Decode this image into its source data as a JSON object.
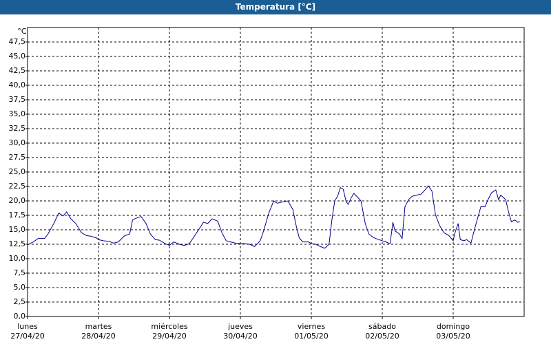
{
  "chart_data": {
    "type": "line",
    "title": "Temperatura [°C]",
    "y_label": "°C",
    "x": [
      0,
      0.08,
      0.15,
      0.24,
      0.29,
      0.37,
      0.44,
      0.5,
      0.55,
      0.61,
      0.68,
      0.76,
      0.83,
      0.89,
      0.97,
      1.0,
      1.07,
      1.15,
      1.21,
      1.28,
      1.36,
      1.44,
      1.48,
      1.53,
      1.6,
      1.67,
      1.73,
      1.8,
      1.86,
      1.94,
      2.0,
      2.06,
      2.14,
      2.21,
      2.28,
      2.33,
      2.4,
      2.48,
      2.54,
      2.6,
      2.68,
      2.74,
      2.8,
      2.86,
      2.93,
      3.0,
      3.06,
      3.13,
      3.2,
      3.28,
      3.33,
      3.4,
      3.47,
      3.52,
      3.59,
      3.67,
      3.74,
      3.79,
      3.83,
      3.88,
      3.96,
      4.0,
      4.06,
      4.13,
      4.19,
      4.25,
      4.29,
      4.33,
      4.37,
      4.41,
      4.45,
      4.49,
      4.52,
      4.56,
      4.6,
      4.64,
      4.7,
      4.76,
      4.81,
      4.87,
      4.95,
      5.0,
      5.05,
      5.11,
      5.15,
      5.18,
      5.24,
      5.28,
      5.32,
      5.37,
      5.42,
      5.49,
      5.55,
      5.61,
      5.65,
      5.7,
      5.75,
      5.81,
      5.87,
      5.94,
      6.0,
      6.02,
      6.07,
      6.1,
      6.15,
      6.19,
      6.25,
      6.31,
      6.39,
      6.45,
      6.49,
      6.54,
      6.6,
      6.64,
      6.67,
      6.74,
      6.78,
      6.82,
      6.87,
      6.91,
      6.94
    ],
    "series": [
      {
        "name": "Temperatura",
        "color": "#00008b",
        "values": [
          12.4,
          12.9,
          13.5,
          13.5,
          14.3,
          16.1,
          17.9,
          17.4,
          18.1,
          16.9,
          16.1,
          14.5,
          14.0,
          13.9,
          13.6,
          13.3,
          13.1,
          13.0,
          12.7,
          12.9,
          13.9,
          14.3,
          16.7,
          17.0,
          17.3,
          16.1,
          14.3,
          13.3,
          13.2,
          12.6,
          12.3,
          12.9,
          12.5,
          12.3,
          12.6,
          13.5,
          14.8,
          16.3,
          16.1,
          16.9,
          16.5,
          14.5,
          13.1,
          12.9,
          12.7,
          12.6,
          12.6,
          12.5,
          12.1,
          13.1,
          14.9,
          17.9,
          20.0,
          19.6,
          19.8,
          20.0,
          18.5,
          15.5,
          13.6,
          12.9,
          12.9,
          12.6,
          12.5,
          12.1,
          11.8,
          12.5,
          16.7,
          20.0,
          20.8,
          22.3,
          22.0,
          19.9,
          19.4,
          20.5,
          21.3,
          20.8,
          20.0,
          16.1,
          14.3,
          13.7,
          13.3,
          13.1,
          12.9,
          12.6,
          16.3,
          14.8,
          14.3,
          13.5,
          19.0,
          20.2,
          20.8,
          21.0,
          21.2,
          22.0,
          22.6,
          21.7,
          17.6,
          15.7,
          14.5,
          14.0,
          13.1,
          14.3,
          16.1,
          13.3,
          13.1,
          13.3,
          12.7,
          15.5,
          19.0,
          19.0,
          20.2,
          21.4,
          21.9,
          20.2,
          21.0,
          20.2,
          18.1,
          16.4,
          16.7,
          16.3,
          16.4
        ]
      }
    ],
    "xlim": [
      0,
      7
    ],
    "xticks": [
      {
        "value": 0,
        "label": "lunes\n27/04/20"
      },
      {
        "value": 1,
        "label": "martes\n28/04/20"
      },
      {
        "value": 2,
        "label": "miércoles\n29/04/20"
      },
      {
        "value": 3,
        "label": "jueves\n30/04/20"
      },
      {
        "value": 4,
        "label": "viernes\n01/05/20"
      },
      {
        "value": 5,
        "label": "sábado\n02/05/20"
      },
      {
        "value": 6,
        "label": "domingo\n03/05/20"
      }
    ],
    "ylim": [
      0,
      50
    ],
    "yticks": [
      {
        "value": 0,
        "label": "0,0"
      },
      {
        "value": 2.5,
        "label": "2,5"
      },
      {
        "value": 5,
        "label": "5,0"
      },
      {
        "value": 7.5,
        "label": "7,5"
      },
      {
        "value": 10,
        "label": "10,0"
      },
      {
        "value": 12.5,
        "label": "12,5"
      },
      {
        "value": 15,
        "label": "15,0"
      },
      {
        "value": 17.5,
        "label": "17,5"
      },
      {
        "value": 20,
        "label": "20,0"
      },
      {
        "value": 22.5,
        "label": "22,5"
      },
      {
        "value": 25,
        "label": "25,0"
      },
      {
        "value": 27.5,
        "label": "27,5"
      },
      {
        "value": 30,
        "label": "30,0"
      },
      {
        "value": 32.5,
        "label": "32,5"
      },
      {
        "value": 35,
        "label": "35,0"
      },
      {
        "value": 37.5,
        "label": "37,5"
      },
      {
        "value": 40,
        "label": "40,0"
      },
      {
        "value": 42.5,
        "label": "42,5"
      },
      {
        "value": 45,
        "label": "45,0"
      },
      {
        "value": 47.5,
        "label": "47,5"
      }
    ],
    "grid": true
  }
}
